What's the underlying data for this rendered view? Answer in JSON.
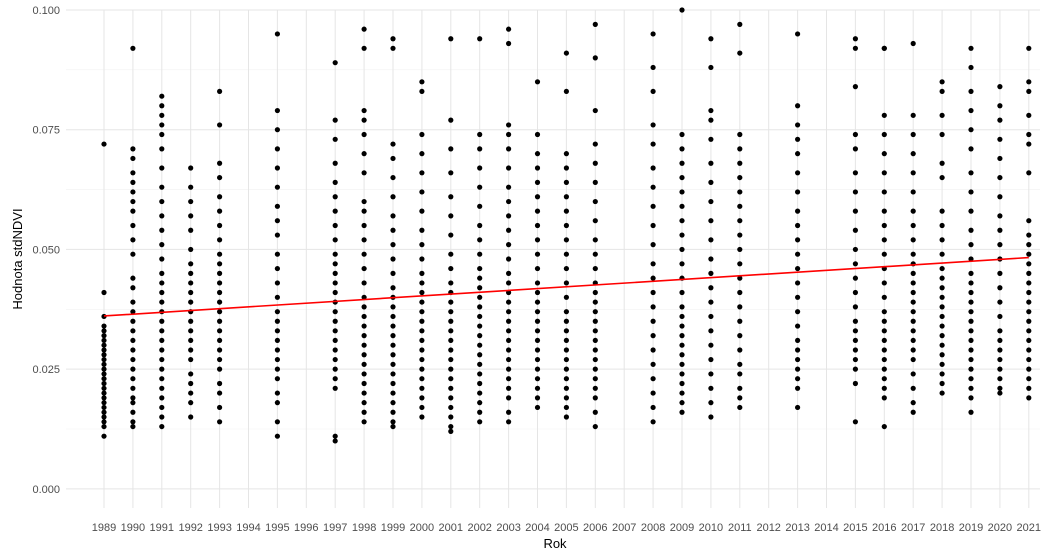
{
  "chart_data": {
    "type": "scatter",
    "title": "",
    "xlabel": "Rok",
    "ylabel": "Hodnota stdNDVI",
    "categories": [
      "1989",
      "1990",
      "1991",
      "1992",
      "1993",
      "1994",
      "1995",
      "1996",
      "1997",
      "1998",
      "1999",
      "2000",
      "2001",
      "2002",
      "2003",
      "2004",
      "2005",
      "2006",
      "2007",
      "2008",
      "2009",
      "2010",
      "2011",
      "2012",
      "2013",
      "2014",
      "2015",
      "2016",
      "2017",
      "2018",
      "2019",
      "2020",
      "2021"
    ],
    "y_ticks": [
      "0.000",
      "0.025",
      "0.050",
      "0.075",
      "0.100"
    ],
    "ylim": [
      -0.004,
      0.1
    ],
    "grid": true,
    "legend": "none",
    "colors": {
      "points": "#000000",
      "trend": "#ff0000",
      "grid_major": "#e5e5e5",
      "grid_minor": "#f2f2f2"
    },
    "series": [
      {
        "kind": "points",
        "points": [
          {
            "x": "1989",
            "y": [
              0.072,
              0.041,
              0.036,
              0.034,
              0.033,
              0.032,
              0.031,
              0.03,
              0.029,
              0.028,
              0.027,
              0.026,
              0.025,
              0.024,
              0.023,
              0.022,
              0.021,
              0.02,
              0.019,
              0.018,
              0.017,
              0.016,
              0.015,
              0.014,
              0.013,
              0.011
            ]
          },
          {
            "x": "1990",
            "y": [
              0.092,
              0.071,
              0.069,
              0.066,
              0.064,
              0.062,
              0.06,
              0.058,
              0.055,
              0.052,
              0.049,
              0.044,
              0.042,
              0.039,
              0.037,
              0.035,
              0.033,
              0.031,
              0.029,
              0.027,
              0.025,
              0.023,
              0.021,
              0.019,
              0.018,
              0.016,
              0.014,
              0.013
            ]
          },
          {
            "x": "1991",
            "y": [
              0.082,
              0.08,
              0.078,
              0.076,
              0.074,
              0.071,
              0.067,
              0.063,
              0.06,
              0.057,
              0.054,
              0.051,
              0.048,
              0.045,
              0.043,
              0.041,
              0.039,
              0.037,
              0.035,
              0.033,
              0.031,
              0.029,
              0.027,
              0.025,
              0.023,
              0.021,
              0.019,
              0.017,
              0.015,
              0.013
            ]
          },
          {
            "x": "1992",
            "y": [
              0.067,
              0.063,
              0.06,
              0.057,
              0.054,
              0.05,
              0.047,
              0.045,
              0.043,
              0.041,
              0.039,
              0.037,
              0.035,
              0.033,
              0.031,
              0.029,
              0.027,
              0.024,
              0.022,
              0.02,
              0.018,
              0.015
            ]
          },
          {
            "x": "1993",
            "y": [
              0.083,
              0.076,
              0.068,
              0.065,
              0.061,
              0.058,
              0.055,
              0.052,
              0.049,
              0.047,
              0.045,
              0.043,
              0.041,
              0.039,
              0.037,
              0.035,
              0.033,
              0.031,
              0.029,
              0.027,
              0.025,
              0.022,
              0.02,
              0.017,
              0.014
            ]
          },
          {
            "x": "1994",
            "y": []
          },
          {
            "x": "1995",
            "y": [
              0.095,
              0.079,
              0.075,
              0.071,
              0.067,
              0.063,
              0.059,
              0.056,
              0.053,
              0.049,
              0.046,
              0.043,
              0.04,
              0.037,
              0.035,
              0.033,
              0.031,
              0.029,
              0.027,
              0.025,
              0.023,
              0.02,
              0.018,
              0.014,
              0.011
            ]
          },
          {
            "x": "1996",
            "y": []
          },
          {
            "x": "1997",
            "y": [
              0.089,
              0.077,
              0.073,
              0.068,
              0.064,
              0.061,
              0.058,
              0.055,
              0.052,
              0.049,
              0.047,
              0.045,
              0.043,
              0.041,
              0.039,
              0.037,
              0.035,
              0.033,
              0.031,
              0.029,
              0.027,
              0.025,
              0.023,
              0.021,
              0.011,
              0.01
            ]
          },
          {
            "x": "1998",
            "y": [
              0.096,
              0.092,
              0.079,
              0.077,
              0.074,
              0.07,
              0.066,
              0.06,
              0.058,
              0.055,
              0.052,
              0.049,
              0.046,
              0.043,
              0.04,
              0.038,
              0.036,
              0.034,
              0.032,
              0.03,
              0.028,
              0.026,
              0.024,
              0.022,
              0.02,
              0.018,
              0.016,
              0.014
            ]
          },
          {
            "x": "1999",
            "y": [
              0.094,
              0.092,
              0.072,
              0.069,
              0.065,
              0.061,
              0.057,
              0.054,
              0.051,
              0.048,
              0.045,
              0.042,
              0.04,
              0.038,
              0.036,
              0.034,
              0.032,
              0.03,
              0.028,
              0.026,
              0.024,
              0.022,
              0.02,
              0.018,
              0.016,
              0.014,
              0.013
            ]
          },
          {
            "x": "2000",
            "y": [
              0.085,
              0.083,
              0.074,
              0.07,
              0.066,
              0.062,
              0.058,
              0.054,
              0.051,
              0.048,
              0.045,
              0.043,
              0.041,
              0.039,
              0.037,
              0.035,
              0.033,
              0.031,
              0.029,
              0.027,
              0.025,
              0.023,
              0.021,
              0.019,
              0.017,
              0.015
            ]
          },
          {
            "x": "2001",
            "y": [
              0.094,
              0.077,
              0.071,
              0.066,
              0.061,
              0.057,
              0.053,
              0.049,
              0.046,
              0.043,
              0.041,
              0.039,
              0.037,
              0.035,
              0.033,
              0.031,
              0.029,
              0.027,
              0.025,
              0.023,
              0.021,
              0.019,
              0.017,
              0.015,
              0.013,
              0.012
            ]
          },
          {
            "x": "2002",
            "y": [
              0.094,
              0.074,
              0.071,
              0.067,
              0.063,
              0.059,
              0.055,
              0.052,
              0.049,
              0.046,
              0.044,
              0.042,
              0.04,
              0.038,
              0.036,
              0.034,
              0.032,
              0.03,
              0.028,
              0.026,
              0.024,
              0.022,
              0.02,
              0.018,
              0.016,
              0.014
            ]
          },
          {
            "x": "2003",
            "y": [
              0.096,
              0.093,
              0.076,
              0.074,
              0.071,
              0.067,
              0.063,
              0.06,
              0.057,
              0.054,
              0.051,
              0.048,
              0.045,
              0.043,
              0.041,
              0.039,
              0.037,
              0.035,
              0.033,
              0.031,
              0.029,
              0.027,
              0.025,
              0.023,
              0.021,
              0.019,
              0.016,
              0.014
            ]
          },
          {
            "x": "2004",
            "y": [
              0.085,
              0.074,
              0.07,
              0.067,
              0.064,
              0.061,
              0.058,
              0.055,
              0.052,
              0.049,
              0.046,
              0.043,
              0.041,
              0.039,
              0.037,
              0.035,
              0.033,
              0.031,
              0.029,
              0.027,
              0.025,
              0.023,
              0.021,
              0.019,
              0.017
            ]
          },
          {
            "x": "2005",
            "y": [
              0.091,
              0.083,
              0.07,
              0.067,
              0.064,
              0.061,
              0.058,
              0.055,
              0.052,
              0.049,
              0.046,
              0.043,
              0.04,
              0.037,
              0.035,
              0.033,
              0.031,
              0.029,
              0.027,
              0.025,
              0.023,
              0.021,
              0.019,
              0.017,
              0.015
            ]
          },
          {
            "x": "2006",
            "y": [
              0.097,
              0.09,
              0.079,
              0.072,
              0.068,
              0.064,
              0.06,
              0.056,
              0.052,
              0.049,
              0.046,
              0.043,
              0.041,
              0.039,
              0.037,
              0.035,
              0.033,
              0.031,
              0.029,
              0.027,
              0.025,
              0.023,
              0.021,
              0.019,
              0.016,
              0.013
            ]
          },
          {
            "x": "2007",
            "y": []
          },
          {
            "x": "2008",
            "y": [
              0.095,
              0.088,
              0.083,
              0.076,
              0.072,
              0.067,
              0.063,
              0.059,
              0.055,
              0.051,
              0.047,
              0.044,
              0.041,
              0.038,
              0.035,
              0.032,
              0.029,
              0.026,
              0.023,
              0.02,
              0.017,
              0.014
            ]
          },
          {
            "x": "2009",
            "y": [
              0.1,
              0.074,
              0.071,
              0.068,
              0.065,
              0.062,
              0.059,
              0.056,
              0.053,
              0.05,
              0.047,
              0.044,
              0.041,
              0.038,
              0.036,
              0.034,
              0.032,
              0.03,
              0.028,
              0.026,
              0.024,
              0.022,
              0.02,
              0.018,
              0.016
            ]
          },
          {
            "x": "2010",
            "y": [
              0.094,
              0.088,
              0.079,
              0.077,
              0.073,
              0.068,
              0.064,
              0.06,
              0.056,
              0.052,
              0.048,
              0.045,
              0.042,
              0.039,
              0.036,
              0.033,
              0.03,
              0.027,
              0.024,
              0.021,
              0.018,
              0.015
            ]
          },
          {
            "x": "2011",
            "y": [
              0.097,
              0.091,
              0.074,
              0.071,
              0.068,
              0.065,
              0.062,
              0.059,
              0.056,
              0.053,
              0.05,
              0.047,
              0.044,
              0.041,
              0.038,
              0.035,
              0.032,
              0.029,
              0.026,
              0.024,
              0.021,
              0.019,
              0.017
            ]
          },
          {
            "x": "2012",
            "y": []
          },
          {
            "x": "2013",
            "y": [
              0.095,
              0.08,
              0.076,
              0.073,
              0.07,
              0.066,
              0.062,
              0.058,
              0.055,
              0.052,
              0.049,
              0.046,
              0.043,
              0.04,
              0.037,
              0.034,
              0.031,
              0.029,
              0.027,
              0.025,
              0.023,
              0.021,
              0.017
            ]
          },
          {
            "x": "2014",
            "y": []
          },
          {
            "x": "2015",
            "y": [
              0.094,
              0.092,
              0.084,
              0.074,
              0.071,
              0.066,
              0.062,
              0.058,
              0.054,
              0.05,
              0.047,
              0.044,
              0.041,
              0.038,
              0.035,
              0.033,
              0.031,
              0.029,
              0.027,
              0.025,
              0.022,
              0.014
            ]
          },
          {
            "x": "2016",
            "y": [
              0.092,
              0.092,
              0.078,
              0.074,
              0.07,
              0.066,
              0.062,
              0.058,
              0.055,
              0.052,
              0.049,
              0.046,
              0.043,
              0.04,
              0.037,
              0.035,
              0.033,
              0.031,
              0.029,
              0.027,
              0.025,
              0.023,
              0.021,
              0.019,
              0.013
            ]
          },
          {
            "x": "2017",
            "y": [
              0.093,
              0.078,
              0.074,
              0.07,
              0.066,
              0.062,
              0.058,
              0.055,
              0.052,
              0.049,
              0.047,
              0.045,
              0.043,
              0.041,
              0.039,
              0.037,
              0.035,
              0.033,
              0.031,
              0.029,
              0.027,
              0.024,
              0.021,
              0.018,
              0.016
            ]
          },
          {
            "x": "2018",
            "y": [
              0.085,
              0.083,
              0.078,
              0.074,
              0.068,
              0.065,
              0.058,
              0.055,
              0.052,
              0.049,
              0.046,
              0.044,
              0.042,
              0.04,
              0.038,
              0.036,
              0.034,
              0.032,
              0.03,
              0.028,
              0.026,
              0.024,
              0.022,
              0.02
            ]
          },
          {
            "x": "2019",
            "y": [
              0.092,
              0.088,
              0.083,
              0.079,
              0.075,
              0.071,
              0.066,
              0.062,
              0.058,
              0.054,
              0.051,
              0.048,
              0.045,
              0.043,
              0.041,
              0.039,
              0.037,
              0.035,
              0.033,
              0.031,
              0.029,
              0.027,
              0.025,
              0.023,
              0.021,
              0.019,
              0.016
            ]
          },
          {
            "x": "2020",
            "y": [
              0.084,
              0.08,
              0.077,
              0.073,
              0.069,
              0.065,
              0.061,
              0.057,
              0.054,
              0.051,
              0.048,
              0.045,
              0.042,
              0.039,
              0.036,
              0.033,
              0.031,
              0.029,
              0.027,
              0.025,
              0.023,
              0.021,
              0.02
            ]
          },
          {
            "x": "2021",
            "y": [
              0.092,
              0.085,
              0.083,
              0.078,
              0.074,
              0.072,
              0.066,
              0.056,
              0.053,
              0.051,
              0.049,
              0.047,
              0.045,
              0.043,
              0.041,
              0.039,
              0.037,
              0.035,
              0.033,
              0.031,
              0.029,
              0.027,
              0.025,
              0.023,
              0.021,
              0.019
            ]
          }
        ]
      },
      {
        "kind": "trend",
        "x": [
          "1989",
          "2021"
        ],
        "y": [
          0.0361,
          0.0483
        ]
      }
    ]
  }
}
